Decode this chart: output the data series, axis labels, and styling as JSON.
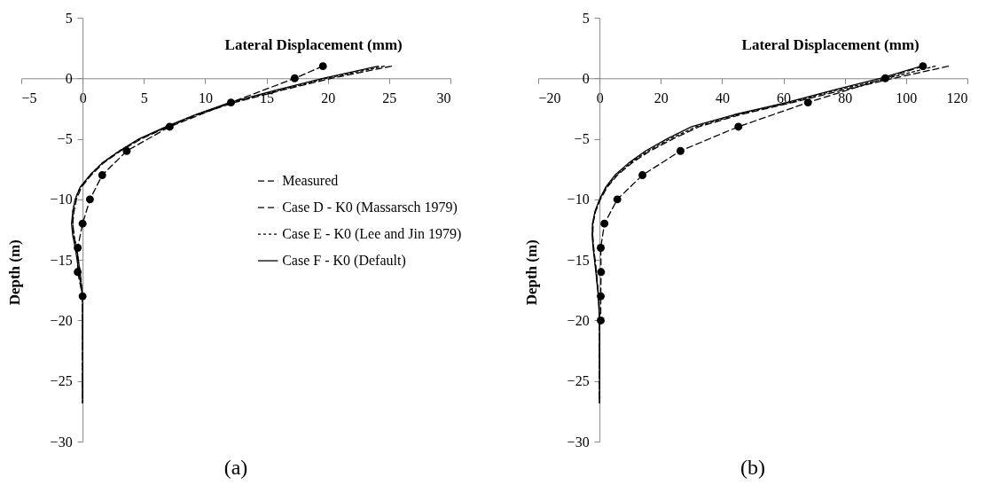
{
  "chart_data": [
    {
      "type": "line",
      "title": "(a)",
      "xlabel": "Lateral Displacement (mm)",
      "ylabel": "Depth (m)",
      "xlim": [
        -5,
        30
      ],
      "xticks": [
        -5,
        0,
        5,
        10,
        15,
        20,
        25,
        30
      ],
      "ylim": [
        -30,
        5
      ],
      "yticks": [
        -30,
        -25,
        -20,
        -15,
        -10,
        -5,
        0,
        5
      ],
      "grid": false,
      "legend": "right",
      "series": [
        {
          "name": "Measured",
          "color": "#000000",
          "line_style": "dashed",
          "marker": "circle",
          "x": [
            19.6,
            17.3,
            12.1,
            7.1,
            3.6,
            1.6,
            0.6,
            0,
            -0.4,
            -0.4,
            0
          ],
          "values": [
            1,
            0,
            -2,
            -4,
            -6,
            -8,
            -10,
            -12,
            -14,
            -16,
            -18
          ]
        },
        {
          "name": "Case D - K0 (Massarsch  1979)",
          "color": "#000000",
          "line_style": "dashed",
          "marker": "none",
          "x": [
            25.2,
            20.3,
            16.2,
            12.4,
            9.4,
            7.0,
            4.8,
            3.1,
            1.7,
            0.7,
            -0.1,
            -0.5,
            -0.7,
            -0.8,
            -0.7,
            -0.5,
            -0.2,
            0,
            0,
            0
          ],
          "values": [
            1,
            0,
            -1,
            -2,
            -3,
            -4,
            -5,
            -6,
            -7,
            -8,
            -9,
            -10,
            -11,
            -12,
            -13,
            -14,
            -16,
            -18,
            -20,
            -26.8
          ]
        },
        {
          "name": "Case E - K0 (Lee and Jin 1979)",
          "color": "#000000",
          "line_style": "dotted",
          "marker": "none",
          "x": [
            24.6,
            19.9,
            16.0,
            12.2,
            9.3,
            6.9,
            4.7,
            3.0,
            1.6,
            0.6,
            -0.2,
            -0.6,
            -0.8,
            -0.8,
            -0.7,
            -0.5,
            -0.2,
            0,
            0,
            0
          ],
          "values": [
            1,
            0,
            -1,
            -2,
            -3,
            -4,
            -5,
            -6,
            -7,
            -8,
            -9,
            -10,
            -11,
            -12,
            -13,
            -14,
            -16,
            -18,
            -20,
            -26.8
          ]
        },
        {
          "name": "Case F - K0 (Default)",
          "color": "#000000",
          "line_style": "solid",
          "marker": "none",
          "x": [
            24.1,
            19.6,
            15.7,
            12.0,
            9.2,
            6.8,
            4.6,
            3.0,
            1.6,
            0.6,
            -0.2,
            -0.6,
            -0.8,
            -0.9,
            -0.8,
            -0.6,
            -0.3,
            0,
            0,
            0
          ],
          "values": [
            1,
            0,
            -1,
            -2,
            -3,
            -4,
            -5,
            -6,
            -7,
            -8,
            -9,
            -10,
            -11,
            -12,
            -13,
            -14,
            -16,
            -18,
            -20,
            -26.8
          ]
        }
      ]
    },
    {
      "type": "line",
      "title": "(b)",
      "xlabel": "Lateral Displacement (mm)",
      "ylabel": "Depth (m)",
      "xlim": [
        -20,
        120
      ],
      "xticks": [
        -20,
        0,
        20,
        40,
        60,
        80,
        100,
        120
      ],
      "ylim": [
        -30,
        5
      ],
      "yticks": [
        -30,
        -25,
        -20,
        -15,
        -10,
        -5,
        0,
        5
      ],
      "grid": false,
      "legend": "right",
      "series": [
        {
          "name": "Measured",
          "color": "#000000",
          "line_style": "dashed",
          "marker": "circle",
          "x": [
            105.5,
            93.2,
            68,
            45.3,
            26.4,
            14,
            5.8,
            1.6,
            0.4,
            0.5,
            0.4,
            0.4
          ],
          "values": [
            1,
            0,
            -2,
            -4,
            -6,
            -8,
            -10,
            -12,
            -14,
            -16,
            -18,
            -20
          ]
        },
        {
          "name": "Case D - K0 (Massarsch  1979)",
          "color": "#000000",
          "line_style": "dashed",
          "marker": "none",
          "x": [
            113.8,
            96,
            79,
            63,
            46,
            32.5,
            24,
            16.5,
            10.5,
            5.8,
            2.5,
            0.3,
            -1.3,
            -2.1,
            -2.2,
            -1.9,
            -1.0,
            -0.3,
            0,
            0
          ],
          "values": [
            1,
            0,
            -1,
            -2,
            -3,
            -4,
            -5,
            -6,
            -7,
            -8,
            -9,
            -10,
            -11,
            -12,
            -13,
            -14,
            -16,
            -18,
            -20,
            -26.8
          ]
        },
        {
          "name": "Case E - K0 (Lee and Jin 1979)",
          "color": "#000000",
          "line_style": "dotted",
          "marker": "none",
          "x": [
            109.5,
            94,
            77,
            62,
            45,
            31.5,
            23,
            15.8,
            10,
            5.5,
            2.2,
            0.1,
            -1.4,
            -2.2,
            -2.3,
            -2.0,
            -1.1,
            -0.3,
            0,
            0
          ],
          "values": [
            1,
            0,
            -1,
            -2,
            -3,
            -4,
            -5,
            -6,
            -7,
            -8,
            -9,
            -10,
            -11,
            -12,
            -13,
            -14,
            -16,
            -18,
            -20,
            -26.8
          ]
        },
        {
          "name": "Case F - K0 (Default)",
          "color": "#000000",
          "line_style": "solid",
          "marker": "none",
          "x": [
            105,
            91.5,
            76,
            61,
            44,
            30,
            22,
            15,
            9.5,
            5,
            2,
            0,
            -1.5,
            -2.3,
            -2.4,
            -2.1,
            -1.2,
            -0.4,
            0,
            0
          ],
          "values": [
            1,
            0,
            -1,
            -2,
            -3,
            -4,
            -5,
            -6,
            -7,
            -8,
            -9,
            -10,
            -11,
            -12,
            -13,
            -14,
            -16,
            -18,
            -20,
            -26.8
          ]
        }
      ]
    }
  ]
}
